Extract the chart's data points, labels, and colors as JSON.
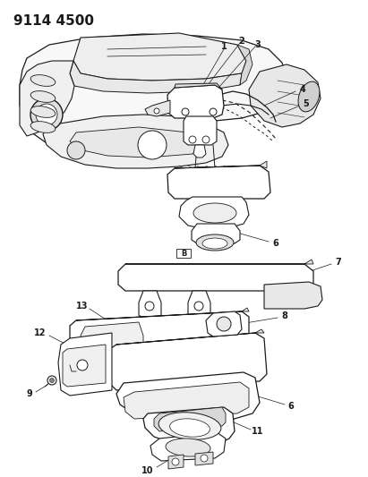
{
  "title": "9114 4500",
  "bg_color": "#ffffff",
  "line_color": "#1a1a1a",
  "label_color": "#1a1a1a",
  "title_fontsize": 11,
  "label_fontsize": 7.5,
  "figsize": [
    4.11,
    5.33
  ],
  "dpi": 100
}
